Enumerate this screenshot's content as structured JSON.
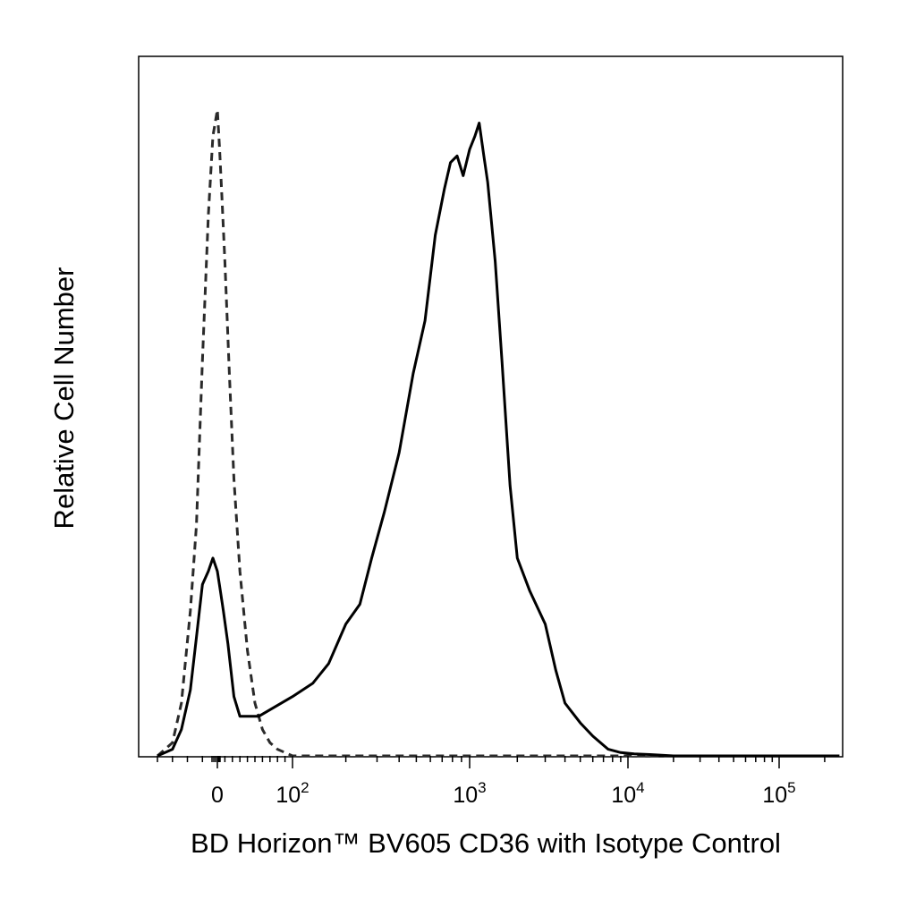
{
  "chart_data": {
    "type": "line",
    "title": "",
    "xlabel": "BD Horizon™ BV605 CD36 with Isotype Control",
    "ylabel": "Relative Cell Number",
    "x_scale": "biexponential",
    "xlim": [
      -40,
      250000
    ],
    "ylim": [
      0,
      1
    ],
    "grid": false,
    "legend": "none",
    "x_ticks": [
      {
        "base": "0",
        "exp": ""
      },
      {
        "base": "10",
        "exp": "2"
      },
      {
        "base": "10",
        "exp": "3"
      },
      {
        "base": "10",
        "exp": "4"
      },
      {
        "base": "10",
        "exp": "5"
      }
    ],
    "series": [
      {
        "style": "dashed",
        "color": "#2a2a2a",
        "x": [
          -40,
          -30,
          -24,
          -18,
          -14,
          -10,
          -6,
          -3,
          0,
          3,
          6,
          10,
          16,
          22,
          30,
          40,
          50,
          60,
          70,
          80,
          100,
          250000
        ],
        "y": [
          0.0,
          0.02,
          0.08,
          0.22,
          0.35,
          0.6,
          0.82,
          0.94,
          0.98,
          0.92,
          0.85,
          0.75,
          0.58,
          0.42,
          0.28,
          0.16,
          0.08,
          0.04,
          0.02,
          0.01,
          0.0,
          0.0
        ]
      },
      {
        "style": "solid",
        "color": "#000000",
        "x": [
          -40,
          -30,
          -24,
          -18,
          -14,
          -10,
          -6,
          -3,
          0,
          4,
          8,
          14,
          22,
          30,
          40,
          55,
          70,
          100,
          130,
          160,
          200,
          240,
          280,
          330,
          400,
          480,
          560,
          640,
          720,
          780,
          850,
          920,
          1000,
          1080,
          1150,
          1230,
          1300,
          1450,
          1600,
          1800,
          2000,
          2400,
          3000,
          3500,
          4000,
          5000,
          6000,
          7500,
          9000,
          11000,
          14000,
          20000,
          250000
        ],
        "y": [
          0.0,
          0.01,
          0.04,
          0.1,
          0.18,
          0.26,
          0.28,
          0.3,
          0.28,
          0.25,
          0.22,
          0.17,
          0.09,
          0.06,
          0.06,
          0.06,
          0.07,
          0.09,
          0.11,
          0.14,
          0.2,
          0.23,
          0.3,
          0.37,
          0.46,
          0.58,
          0.66,
          0.79,
          0.86,
          0.9,
          0.91,
          0.88,
          0.92,
          0.94,
          0.96,
          0.91,
          0.87,
          0.75,
          0.6,
          0.41,
          0.3,
          0.25,
          0.2,
          0.13,
          0.08,
          0.05,
          0.03,
          0.01,
          0.005,
          0.003,
          0.002,
          0.0,
          0.0
        ]
      }
    ]
  }
}
